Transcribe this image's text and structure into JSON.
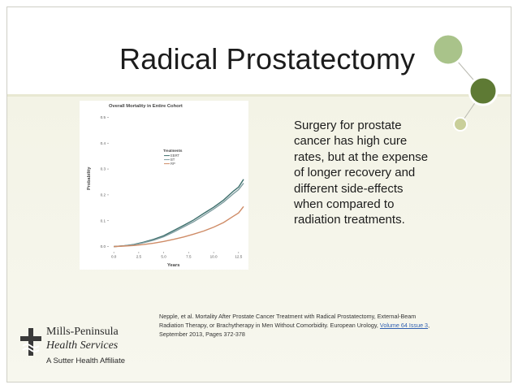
{
  "slide": {
    "title": "Radical Prostatectomy",
    "body_text": "Surgery for prostate cancer has high cure rates, but at the expense of longer recovery and different side-effects when compared to radiation treatments.",
    "citation": {
      "text_before": "Nepple, et al. Mortality After Prostate Cancer Treatment with Radical Prostatectomy, External-Beam Radiation Therapy, or Brachytherapy in Men Without Comorbidity. European Urology, ",
      "link_text": "Volume 64 Issue 3",
      "text_after": ", September 2013, Pages 372-378"
    },
    "logo": {
      "name": "Mills-Peninsula",
      "sub": "Health Services",
      "affiliate": "A Sutter Health Affiliate"
    },
    "colors": {
      "deco_green_dark": "#5e7a34",
      "deco_green_light": "#a9c38a",
      "deco_olive": "#c9cf9a",
      "content_bg": "#f5f5ea"
    }
  },
  "chart_data": {
    "type": "line",
    "title": "Overall Mortality in Entire Cohort",
    "xlabel": "Years",
    "ylabel": "Probability",
    "xlim": [
      -0.5,
      13
    ],
    "ylim": [
      -0.02,
      0.52
    ],
    "x_ticks": [
      "0.0",
      "2.5",
      "5.0",
      "7.5",
      "10.0",
      "12.5"
    ],
    "x_tick_values": [
      0,
      2.5,
      5,
      7.5,
      10,
      12.5
    ],
    "y_ticks": [
      "0.0",
      "0.1",
      "0.2",
      "0.3",
      "0.4",
      "0.5"
    ],
    "y_tick_values": [
      0,
      0.1,
      0.2,
      0.3,
      0.4,
      0.5
    ],
    "legend_title": "Treatments",
    "legend_position": "upper-left",
    "series": [
      {
        "name": "EBRT",
        "color": "#3d6f6c",
        "x": [
          0,
          1,
          2,
          3,
          4,
          5,
          6,
          7,
          8,
          9,
          10,
          11,
          12,
          12.5,
          13
        ],
        "y": [
          0.0,
          0.003,
          0.008,
          0.017,
          0.028,
          0.042,
          0.062,
          0.082,
          0.103,
          0.128,
          0.152,
          0.18,
          0.215,
          0.23,
          0.26
        ]
      },
      {
        "name": "BT",
        "color": "#7f9da0",
        "x": [
          0,
          1,
          2,
          3,
          4,
          5,
          6,
          7,
          8,
          9,
          10,
          11,
          12,
          12.5,
          13
        ],
        "y": [
          0.0,
          0.003,
          0.007,
          0.015,
          0.025,
          0.038,
          0.056,
          0.076,
          0.096,
          0.12,
          0.145,
          0.172,
          0.205,
          0.22,
          0.245
        ]
      },
      {
        "name": "RP",
        "color": "#cf8c67",
        "x": [
          0,
          1,
          2,
          3,
          4,
          5,
          6,
          7,
          8,
          9,
          10,
          11,
          12,
          12.5,
          13
        ],
        "y": [
          0.0,
          0.002,
          0.004,
          0.008,
          0.013,
          0.02,
          0.028,
          0.037,
          0.048,
          0.06,
          0.075,
          0.093,
          0.118,
          0.13,
          0.155
        ]
      }
    ]
  }
}
